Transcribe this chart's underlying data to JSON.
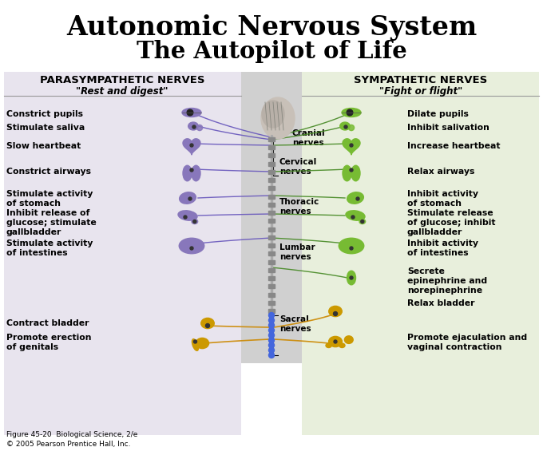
{
  "title_line1": "Autonomic Nervous System",
  "title_line2": "The Autopilot of Life",
  "left_header": "PARASYMPATHETIC NERVES",
  "left_subheader": "\"Rest and digest\"",
  "right_header": "SYMPATHETIC NERVES",
  "right_subheader": "\"Fight or flight\"",
  "left_items": [
    [
      "Constrict pupils",
      138
    ],
    [
      "Stimulate saliva",
      155
    ],
    [
      "Slow heartbeat",
      178
    ],
    [
      "Constrict airways",
      210
    ],
    [
      "Stimulate activity\nof stomach",
      238
    ],
    [
      "Inhibit release of\nglucose; stimulate\ngallbladder",
      262
    ],
    [
      "Stimulate activity\nof intestines",
      300
    ],
    [
      "Contract bladder",
      400
    ],
    [
      "Promote erection\nof genitals",
      418
    ]
  ],
  "right_items": [
    [
      "Dilate pupils",
      138
    ],
    [
      "Inhibit salivation",
      155
    ],
    [
      "Increase heartbeat",
      178
    ],
    [
      "Relax airways",
      210
    ],
    [
      "Inhibit activity\nof stomach",
      238
    ],
    [
      "Stimulate release\nof glucose; inhibit\ngallbladder",
      262
    ],
    [
      "Inhibit activity\nof intestines",
      300
    ],
    [
      "Secrete\nepinephrine and\nnorepinephrine",
      335
    ],
    [
      "Relax bladder",
      375
    ],
    [
      "Promote ejaculation and\nvaginal contraction",
      418
    ]
  ],
  "spine_labels": [
    [
      "Cranial\nnerves",
      170,
      320
    ],
    [
      "Cervical\nnerves",
      205,
      320
    ],
    [
      "Thoracic\nnerves",
      253,
      308
    ],
    [
      "Lumbar\nnerves",
      300,
      308
    ],
    [
      "Sacral\nnerves",
      358,
      308
    ]
  ],
  "left_bg": "#e8e4ee",
  "right_bg": "#e8efdc",
  "center_bg": "#d0d0d0",
  "left_organ_color": "#8877bb",
  "right_organ_color": "#77bb33",
  "bladder_color": "#cc9900",
  "nerve_left": "#6655bb",
  "nerve_right": "#448822",
  "nerve_sacral": "#cc8800",
  "footer": "Figure 45-20  Biological Science, 2/e\n© 2005 Pearson Prentice Hall, Inc.",
  "bg_color": "#ffffff",
  "title_fontsize": 24,
  "header_fontsize": 9,
  "item_fontsize": 7.8
}
